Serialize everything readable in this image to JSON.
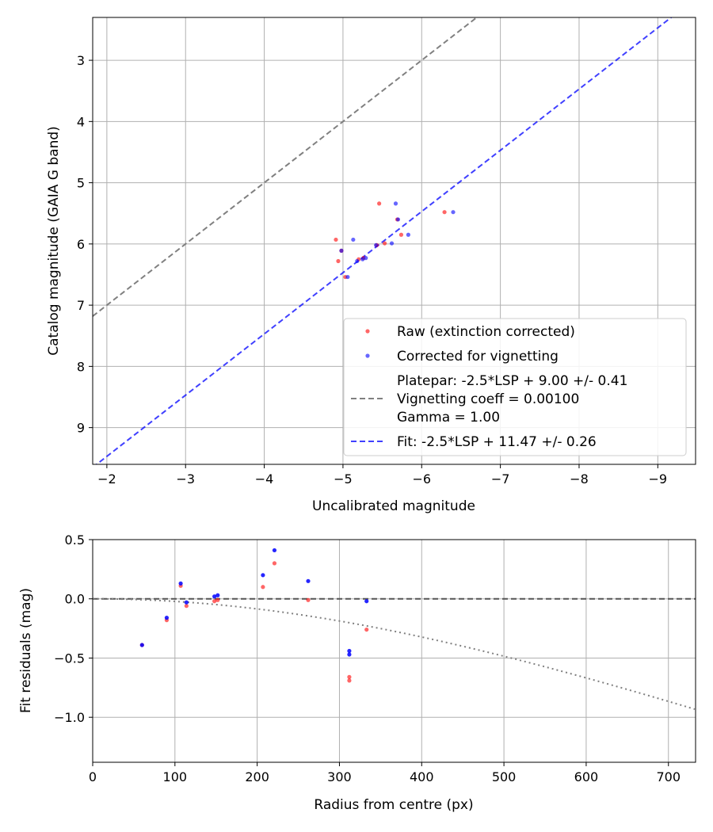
{
  "chart_data": [
    {
      "type": "scatter",
      "xlabel": "Uncalibrated magnitude",
      "ylabel": "Catalog magnitude (GAIA G band)",
      "xlim": [
        -1.82,
        -9.48
      ],
      "ylim": [
        9.6,
        2.3
      ],
      "x_inverted": true,
      "y_inverted": true,
      "grid": true,
      "legend_position": "lower-right",
      "x_ticks": [
        -2,
        -3,
        -4,
        -5,
        -6,
        -7,
        -8,
        -9
      ],
      "x_tick_labels": [
        "−2",
        "−3",
        "−4",
        "−5",
        "−6",
        "−7",
        "−8",
        "−9"
      ],
      "y_ticks": [
        3,
        4,
        5,
        6,
        7,
        8,
        9
      ],
      "y_tick_labels": [
        "3",
        "4",
        "5",
        "6",
        "7",
        "8",
        "9"
      ],
      "series": [
        {
          "name": "Raw (extinction corrected)",
          "kind": "points",
          "color": "#ff0000",
          "points": [
            [
              -4.91,
              5.93
            ],
            [
              -4.94,
              6.28
            ],
            [
              -4.98,
              6.11
            ],
            [
              -5.03,
              6.54
            ],
            [
              -5.2,
              6.25
            ],
            [
              -5.26,
              6.23
            ],
            [
              -5.43,
              6.02
            ],
            [
              -5.46,
              5.34
            ],
            [
              -5.53,
              5.99
            ],
            [
              -5.69,
              5.6
            ],
            [
              -5.74,
              5.85
            ],
            [
              -6.29,
              5.48
            ]
          ]
        },
        {
          "name": "Corrected for vignetting",
          "kind": "points",
          "color": "#0000ff",
          "points": [
            [
              -4.98,
              6.11
            ],
            [
              -5.06,
              6.54
            ],
            [
              -5.13,
              5.93
            ],
            [
              -5.18,
              6.28
            ],
            [
              -5.25,
              6.25
            ],
            [
              -5.29,
              6.23
            ],
            [
              -5.42,
              6.02
            ],
            [
              -5.62,
              5.99
            ],
            [
              -5.67,
              5.34
            ],
            [
              -5.7,
              5.6
            ],
            [
              -5.83,
              5.85
            ],
            [
              -6.4,
              5.48
            ]
          ]
        },
        {
          "name": "Platepar: -2.5*LSP + 9.00 +/- 0.41\nVignetting coeff = 0.00100\nGamma = 1.00",
          "kind": "line",
          "color": "#808080",
          "dash": "dashed",
          "offset": 9.0
        },
        {
          "name": "Fit: -2.5*LSP + 11.47 +/- 0.26",
          "kind": "line",
          "color": "#0000ff",
          "dash": "dashed",
          "offset": 11.47
        }
      ],
      "legend": [
        {
          "label": "Raw (extinction corrected)",
          "marker": "dot",
          "color": "#ff0000"
        },
        {
          "label": "Corrected for vignetting",
          "marker": "dot",
          "color": "#0000ff"
        },
        {
          "lines": [
            "Platepar: -2.5*LSP + 9.00 +/- 0.41",
            "Vignetting coeff = 0.00100",
            "Gamma = 1.00"
          ],
          "marker": "dash",
          "color": "#808080"
        },
        {
          "label": "Fit: -2.5*LSP + 11.47 +/- 0.26",
          "marker": "dash",
          "color": "#0000ff"
        }
      ]
    },
    {
      "type": "scatter",
      "xlabel": "Radius from centre (px)",
      "ylabel": "Fit residuals (mag)",
      "xlim": [
        0,
        733
      ],
      "ylim": [
        -1.38,
        0.5
      ],
      "grid": true,
      "x_ticks": [
        0,
        100,
        200,
        300,
        400,
        500,
        600,
        700
      ],
      "x_tick_labels": [
        "0",
        "100",
        "200",
        "300",
        "400",
        "500",
        "600",
        "700"
      ],
      "y_ticks": [
        0.5,
        0.0,
        -0.5,
        -1.0
      ],
      "y_tick_labels": [
        "0.5",
        "0.0",
        "−0.5",
        "−1.0"
      ],
      "series": [
        {
          "name": "Raw",
          "kind": "points",
          "color": "#ff0000",
          "points": [
            [
              60,
              -0.39
            ],
            [
              90,
              -0.18
            ],
            [
              107,
              0.11
            ],
            [
              114,
              -0.06
            ],
            [
              148,
              -0.02
            ],
            [
              152,
              -0.01
            ],
            [
              207,
              0.1
            ],
            [
              221,
              0.3
            ],
            [
              262,
              -0.01
            ],
            [
              312,
              -0.66
            ],
            [
              312,
              -0.69
            ],
            [
              333,
              -0.26
            ]
          ]
        },
        {
          "name": "Corrected",
          "kind": "points",
          "color": "#0000ff",
          "points": [
            [
              60,
              -0.39
            ],
            [
              90,
              -0.16
            ],
            [
              107,
              0.13
            ],
            [
              114,
              -0.03
            ],
            [
              148,
              0.02
            ],
            [
              152,
              0.03
            ],
            [
              207,
              0.2
            ],
            [
              221,
              0.41
            ],
            [
              262,
              0.15
            ],
            [
              312,
              -0.44
            ],
            [
              312,
              -0.47
            ],
            [
              333,
              -0.02
            ]
          ]
        },
        {
          "name": "Zero line",
          "kind": "hline",
          "color": "#555555",
          "dash": "dashed",
          "y": 0.0
        },
        {
          "name": "Vignetting curve",
          "kind": "curve",
          "color": "#808080",
          "dash": "dotted",
          "coeff": 0.001
        }
      ]
    }
  ]
}
